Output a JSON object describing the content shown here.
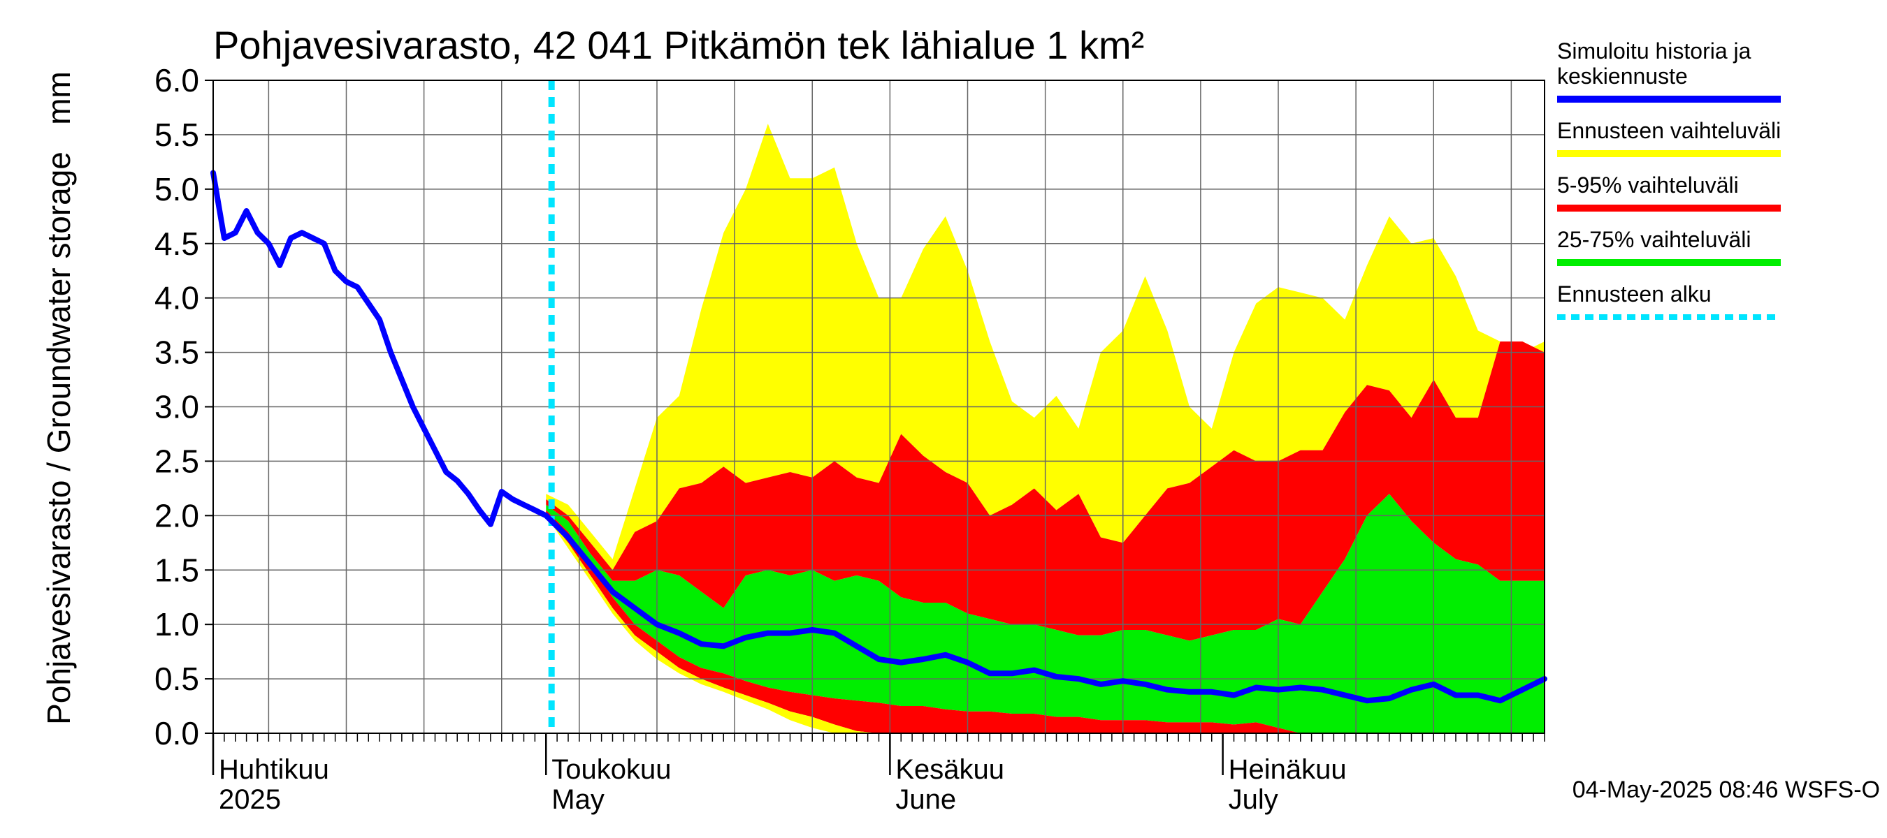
{
  "chart_data": {
    "type": "area",
    "title": "Pohjavesivarasto, 42 041 Pitkämön tek lähialue 1 km²",
    "ylabel": "Pohjavesivarasto / Groundwater storage   mm",
    "ylim": [
      0,
      6
    ],
    "yticks": [
      "0.0",
      "0.5",
      "1.0",
      "1.5",
      "2.0",
      "2.5",
      "3.0",
      "3.5",
      "4.0",
      "4.5",
      "5.0",
      "5.5",
      "6.0"
    ],
    "xlim_days": [
      0,
      120
    ],
    "grid": true,
    "month_labels": [
      {
        "day": 0,
        "line1": "Huhtikuu",
        "line2": "2025"
      },
      {
        "day": 30,
        "line1": "Toukokuu",
        "line2": "May"
      },
      {
        "day": 61,
        "line1": "Kesäkuu",
        "line2": "June"
      },
      {
        "day": 91,
        "line1": "Heinäkuu",
        "line2": "July"
      }
    ],
    "forecast_start_day": 30.5,
    "timestamp": "04-May-2025 08:46 WSFS-O",
    "colors": {
      "median": "#0000ff",
      "range": "#ffff00",
      "p5_95": "#ff0000",
      "p25_75": "#00ee00",
      "forecast_start": "#00e5ff"
    },
    "legend": [
      {
        "label": "Simuloitu historia ja",
        "label2": "keskiennuste",
        "color": "#0000ff",
        "style": "solid"
      },
      {
        "label": "Ennusteen vaihteluväli",
        "label2": "",
        "color": "#ffff00",
        "style": "solid"
      },
      {
        "label": "5-95% vaihteluväli",
        "label2": "",
        "color": "#ff0000",
        "style": "solid"
      },
      {
        "label": "25-75% vaihteluväli",
        "label2": "",
        "color": "#00ee00",
        "style": "solid"
      },
      {
        "label": "Ennusteen alku",
        "label2": "",
        "color": "#00e5ff",
        "style": "dashed"
      }
    ],
    "history_x": [
      0,
      1,
      2,
      3,
      4,
      5,
      6,
      7,
      8,
      9,
      10,
      11,
      12,
      13,
      14,
      15,
      16,
      17,
      18,
      19,
      20,
      21,
      22,
      23,
      24,
      25,
      26,
      27,
      28,
      29,
      30
    ],
    "history_y": [
      5.15,
      4.55,
      4.6,
      4.8,
      4.6,
      4.5,
      4.3,
      4.55,
      4.6,
      4.55,
      4.5,
      4.25,
      4.15,
      4.1,
      3.95,
      3.8,
      3.5,
      3.25,
      3.0,
      2.8,
      2.6,
      2.4,
      2.32,
      2.2,
      2.05,
      1.92,
      2.22,
      2.15,
      2.1,
      2.05,
      2.0
    ],
    "forecast_x": [
      30,
      32,
      34,
      36,
      38,
      40,
      42,
      44,
      46,
      48,
      50,
      52,
      54,
      56,
      58,
      60,
      62,
      64,
      66,
      68,
      70,
      72,
      74,
      76,
      78,
      80,
      82,
      84,
      86,
      88,
      90,
      92,
      94,
      96,
      98,
      100,
      102,
      104,
      106,
      108,
      110,
      112,
      114,
      116,
      118,
      120
    ],
    "series": [
      {
        "name": "max",
        "values": [
          2.2,
          2.1,
          1.85,
          1.6,
          2.25,
          2.9,
          3.1,
          3.9,
          4.6,
          5.0,
          5.6,
          5.1,
          5.1,
          5.2,
          4.5,
          4.0,
          4.0,
          4.45,
          4.75,
          4.25,
          3.6,
          3.05,
          2.9,
          3.1,
          2.8,
          3.5,
          3.7,
          4.2,
          3.7,
          3.0,
          2.8,
          3.5,
          3.95,
          4.1,
          4.05,
          4.0,
          3.8,
          4.3,
          4.75,
          4.5,
          4.55,
          4.2,
          3.7,
          3.6,
          3.5,
          3.6
        ]
      },
      {
        "name": "p95",
        "values": [
          2.15,
          2.0,
          1.75,
          1.5,
          1.85,
          1.95,
          2.25,
          2.3,
          2.45,
          2.3,
          2.35,
          2.4,
          2.35,
          2.5,
          2.35,
          2.3,
          2.75,
          2.55,
          2.4,
          2.3,
          2.0,
          2.1,
          2.25,
          2.05,
          2.2,
          1.8,
          1.75,
          2.0,
          2.25,
          2.3,
          2.45,
          2.6,
          2.5,
          2.5,
          2.6,
          2.6,
          2.95,
          3.2,
          3.15,
          2.9,
          3.25,
          2.9,
          2.9,
          3.6,
          3.6,
          3.5
        ]
      },
      {
        "name": "p75",
        "values": [
          2.1,
          1.95,
          1.65,
          1.4,
          1.4,
          1.5,
          1.45,
          1.3,
          1.15,
          1.45,
          1.5,
          1.45,
          1.5,
          1.4,
          1.45,
          1.4,
          1.25,
          1.2,
          1.2,
          1.1,
          1.05,
          1.0,
          1.0,
          0.95,
          0.9,
          0.9,
          0.95,
          0.95,
          0.9,
          0.85,
          0.9,
          0.95,
          0.95,
          1.05,
          1.0,
          1.3,
          1.6,
          2.0,
          2.2,
          1.95,
          1.75,
          1.6,
          1.55,
          1.4,
          1.4,
          1.4
        ]
      },
      {
        "name": "p25",
        "values": [
          2.05,
          1.85,
          1.55,
          1.25,
          1.0,
          0.85,
          0.7,
          0.6,
          0.55,
          0.48,
          0.42,
          0.38,
          0.35,
          0.32,
          0.3,
          0.28,
          0.25,
          0.25,
          0.22,
          0.2,
          0.2,
          0.18,
          0.18,
          0.15,
          0.15,
          0.12,
          0.12,
          0.12,
          0.1,
          0.1,
          0.1,
          0.08,
          0.1,
          0.05,
          0.0,
          0.0,
          0.0,
          0.0,
          0.0,
          0.0,
          0.0,
          0.0,
          0.0,
          0.0,
          0.0,
          0.0
        ]
      },
      {
        "name": "p5",
        "values": [
          2.0,
          1.75,
          1.45,
          1.15,
          0.9,
          0.75,
          0.6,
          0.5,
          0.42,
          0.35,
          0.28,
          0.2,
          0.15,
          0.08,
          0.02,
          0.0,
          0.0,
          0.0,
          0.0,
          0.0,
          0.0,
          0.0,
          0.0,
          0.0,
          0.0,
          0.0,
          0.0,
          0.0,
          0.0,
          0.0,
          0.0,
          0.0,
          0.0,
          0.0,
          0.0,
          0.0,
          0.0,
          0.0,
          0.0,
          0.0,
          0.0,
          0.0,
          0.0,
          0.0,
          0.0,
          0.0
        ]
      },
      {
        "name": "min",
        "values": [
          2.0,
          1.7,
          1.4,
          1.1,
          0.85,
          0.68,
          0.55,
          0.45,
          0.38,
          0.3,
          0.22,
          0.12,
          0.05,
          0.0,
          0.0,
          0.0,
          0.0,
          0.0,
          0.0,
          0.0,
          0.0,
          0.0,
          0.0,
          0.0,
          0.0,
          0.0,
          0.0,
          0.0,
          0.0,
          0.0,
          0.0,
          0.0,
          0.0,
          0.0,
          0.0,
          0.0,
          0.0,
          0.0,
          0.0,
          0.0,
          0.0,
          0.0,
          0.0,
          0.0,
          0.0,
          0.0
        ]
      },
      {
        "name": "median",
        "values": [
          2.05,
          1.8,
          1.55,
          1.3,
          1.15,
          1.0,
          0.92,
          0.82,
          0.8,
          0.88,
          0.92,
          0.92,
          0.95,
          0.92,
          0.8,
          0.68,
          0.65,
          0.68,
          0.72,
          0.65,
          0.55,
          0.55,
          0.58,
          0.52,
          0.5,
          0.45,
          0.48,
          0.45,
          0.4,
          0.38,
          0.38,
          0.35,
          0.42,
          0.4,
          0.42,
          0.4,
          0.35,
          0.3,
          0.32,
          0.4,
          0.45,
          0.35,
          0.35,
          0.3,
          0.4,
          0.5
        ]
      }
    ]
  }
}
